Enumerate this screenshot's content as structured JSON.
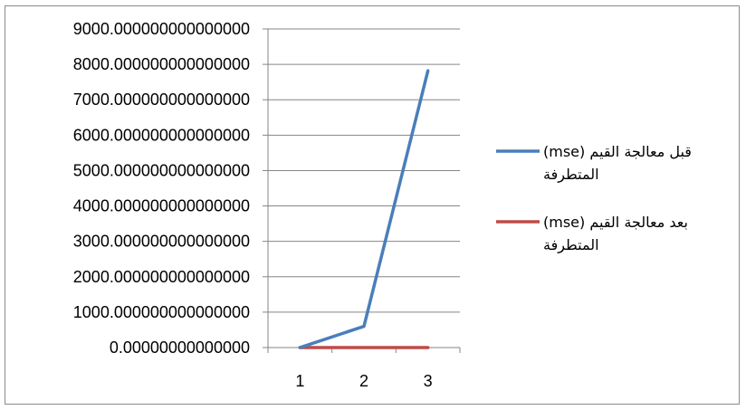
{
  "chart_data": {
    "type": "line",
    "categories": [
      "1",
      "2",
      "3"
    ],
    "series": [
      {
        "name": "(mse)  قبل معالجة القيم المتطرفة",
        "values": [
          0,
          600,
          7820
        ],
        "color": "#4a7ebb"
      },
      {
        "name": "(mse)  بعد معالجة القيم المتطرفة",
        "values": [
          0,
          0,
          0
        ],
        "color": "#be4b48"
      }
    ],
    "ylim": [
      0,
      9000
    ],
    "yticks": [
      "0.00000000000000",
      "1000.000000000000000",
      "2000.000000000000000",
      "3000.000000000000000",
      "4000.000000000000000",
      "5000.000000000000000",
      "6000.000000000000000",
      "7000.000000000000000",
      "8000.000000000000000",
      "9000.000000000000000"
    ],
    "grid": true,
    "legend_position": "right",
    "title": "",
    "xlabel": "",
    "ylabel": ""
  }
}
